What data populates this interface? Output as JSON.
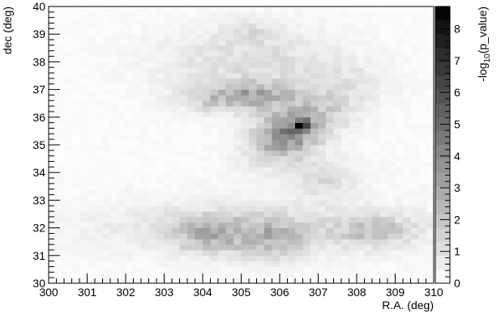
{
  "chart_data": {
    "type": "heatmap",
    "title": "",
    "xlabel": "R.A. (deg)",
    "ylabel": "dec (deg)",
    "colorbar_label": "-log10(p_value)",
    "xlim": [
      300,
      310
    ],
    "ylim": [
      30,
      40
    ],
    "zlim": [
      0,
      8.7
    ],
    "x_ticks": [
      "300",
      "301",
      "302",
      "303",
      "304",
      "305",
      "306",
      "307",
      "308",
      "309",
      "310"
    ],
    "y_ticks": [
      "30",
      "31",
      "32",
      "33",
      "34",
      "35",
      "36",
      "37",
      "38",
      "39",
      "40"
    ],
    "z_ticks": [
      "0",
      "1",
      "2",
      "3",
      "4",
      "5",
      "6",
      "7",
      "8"
    ],
    "bins": {
      "nx": 50,
      "ny": 50,
      "dx": 0.2,
      "dy": 0.2
    },
    "colormap": "grayscale",
    "color_low": "#ffffff",
    "color_high": "#000000",
    "background_value": 0.3,
    "regions": [
      {
        "ra": 306.55,
        "dec": 35.72,
        "sigma_ra": 0.12,
        "sigma_dec": 0.12,
        "peak": 4.5
      },
      {
        "ra": 306.3,
        "dec": 35.6,
        "sigma_ra": 0.55,
        "sigma_dec": 0.55,
        "peak": 3.0
      },
      {
        "ra": 305.9,
        "dec": 35.1,
        "sigma_ra": 0.55,
        "sigma_dec": 0.45,
        "peak": 1.6
      },
      {
        "ra": 307.1,
        "dec": 36.2,
        "sigma_ra": 0.6,
        "sigma_dec": 0.5,
        "peak": 1.2
      },
      {
        "ra": 304.7,
        "dec": 36.7,
        "sigma_ra": 0.8,
        "sigma_dec": 0.35,
        "peak": 2.0
      },
      {
        "ra": 305.6,
        "dec": 36.9,
        "sigma_ra": 0.6,
        "sigma_dec": 0.3,
        "peak": 1.3
      },
      {
        "ra": 305.2,
        "dec": 38.0,
        "sigma_ra": 1.6,
        "sigma_dec": 0.9,
        "peak": 1.0
      },
      {
        "ra": 305.3,
        "dec": 39.1,
        "sigma_ra": 0.4,
        "sigma_dec": 0.3,
        "peak": 0.6
      },
      {
        "ra": 304.2,
        "dec": 31.8,
        "sigma_ra": 0.7,
        "sigma_dec": 0.45,
        "peak": 1.8
      },
      {
        "ra": 305.8,
        "dec": 31.6,
        "sigma_ra": 0.6,
        "sigma_dec": 0.5,
        "peak": 1.6
      },
      {
        "ra": 308.5,
        "dec": 31.9,
        "sigma_ra": 0.7,
        "sigma_dec": 0.35,
        "peak": 1.5
      },
      {
        "ra": 305.5,
        "dec": 32.0,
        "sigma_ra": 3.0,
        "sigma_dec": 0.7,
        "peak": 1.0
      },
      {
        "ra": 307.2,
        "dec": 33.6,
        "sigma_ra": 0.5,
        "sigma_dec": 0.4,
        "peak": 0.8
      },
      {
        "ra": 307.6,
        "dec": 37.2,
        "sigma_ra": 0.9,
        "sigma_dec": 0.6,
        "peak": 0.6
      },
      {
        "ra": 306.5,
        "dec": 34.2,
        "sigma_ra": 1.2,
        "sigma_dec": 0.5,
        "peak": 0.5
      }
    ]
  }
}
